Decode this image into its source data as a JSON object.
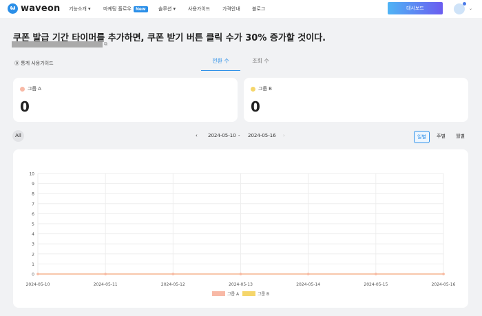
{
  "nav": {
    "logo": "waveon",
    "items": [
      "기능소개 ▾",
      "마케팅 플로우",
      "솔루션 ▾",
      "사용가이드",
      "가격안내",
      "블로그"
    ],
    "new_badge": "New",
    "dashboard": "대시보드"
  },
  "title": "쿠폰 발급 기간 타이머를 추가하면, 쿠폰 받기 버튼 클릭 수가 30% 증가할 것이다.",
  "guide": "⓪ 통계 사용가이드",
  "tabs": [
    "전환 수",
    "조회 수"
  ],
  "groups": [
    {
      "label": "그룹 A",
      "value": "0",
      "color": "#f8b9a6"
    },
    {
      "label": "그룹 B",
      "value": "0",
      "color": "#f5d66b"
    }
  ],
  "filter": {
    "all": "All",
    "prev": "‹",
    "start": "2024-05-10",
    "sep": "-",
    "end": "2024-05-16",
    "next": "›",
    "periods": [
      "일별",
      "주별",
      "월별"
    ]
  },
  "chart_data": {
    "type": "line",
    "x": [
      "2024-05-10",
      "2024-05-11",
      "2024-05-12",
      "2024-05-13",
      "2024-05-14",
      "2024-05-15",
      "2024-05-16"
    ],
    "ylim": [
      0,
      10
    ],
    "yticks": [
      0,
      1,
      2,
      3,
      4,
      5,
      6,
      7,
      8,
      9,
      10
    ],
    "grid": true,
    "legend": "bottom",
    "series": [
      {
        "name": "그룹 A",
        "color": "#f8b9a6",
        "values": [
          0,
          0,
          0,
          0,
          0,
          0,
          0
        ]
      },
      {
        "name": "그룹 B",
        "color": "#f5d66b",
        "values": [
          0,
          0,
          0,
          0,
          0,
          0,
          0
        ]
      }
    ]
  }
}
